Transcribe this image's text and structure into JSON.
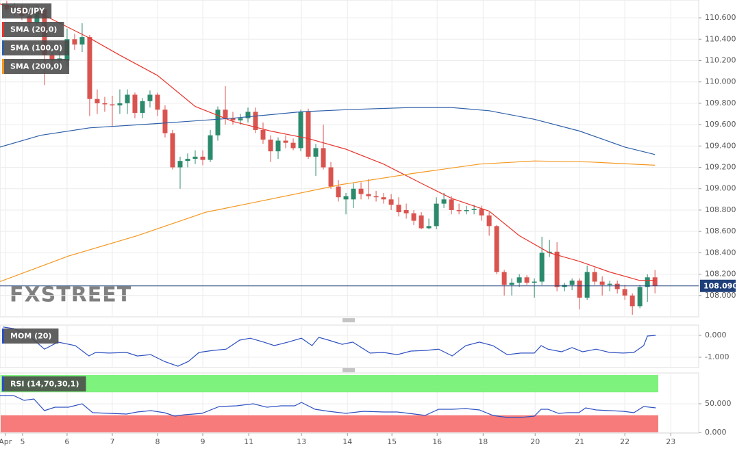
{
  "chart_data": [
    {
      "type": "candlestick",
      "title": "USD/JPY",
      "watermark": "FXSTREET",
      "up_color": "#2b8a6c",
      "down_color": "#d9534f",
      "xlim": [
        -0.9,
        91.8
      ],
      "ylim": [
        107.8,
        110.767
      ],
      "yticks": [
        {
          "value": 110.6,
          "label": "110.600"
        },
        {
          "value": 110.4,
          "label": "110.400"
        },
        {
          "value": 110.2,
          "label": "110.200"
        },
        {
          "value": 110.0,
          "label": "110.000"
        },
        {
          "value": 109.8,
          "label": "109.800"
        },
        {
          "value": 109.6,
          "label": "109.600"
        },
        {
          "value": 109.4,
          "label": "109.400"
        },
        {
          "value": 109.2,
          "label": "109.200"
        },
        {
          "value": 109.0,
          "label": "109.000"
        },
        {
          "value": 108.8,
          "label": "108.800"
        },
        {
          "value": 108.6,
          "label": "108.600"
        },
        {
          "value": 108.4,
          "label": "108.400"
        },
        {
          "value": 108.2,
          "label": "108.200"
        },
        {
          "value": 108.0,
          "label": "108.000"
        }
      ],
      "last_price": {
        "value": 108.09,
        "label": "108.090",
        "color": "#1f3f7a"
      },
      "candles": [
        [
          110.72,
          110.76,
          110.66,
          110.68
        ],
        [
          110.68,
          110.74,
          110.62,
          110.7
        ],
        [
          110.7,
          110.72,
          110.58,
          110.62
        ],
        [
          110.62,
          110.66,
          110.5,
          110.55
        ],
        [
          110.55,
          110.72,
          110.5,
          110.68
        ],
        [
          110.68,
          110.7,
          109.97,
          110.25
        ],
        [
          110.25,
          110.33,
          110.15,
          110.2
        ],
        [
          110.2,
          110.3,
          110.1,
          110.22
        ],
        [
          110.2,
          110.5,
          110.14,
          110.4
        ],
        [
          110.4,
          110.45,
          110.3,
          110.35
        ],
        [
          110.35,
          110.55,
          110.28,
          110.42
        ],
        [
          110.42,
          110.44,
          109.68,
          109.84
        ],
        [
          109.84,
          109.93,
          109.7,
          109.8
        ],
        [
          109.8,
          109.86,
          109.72,
          109.79
        ],
        [
          109.79,
          109.87,
          109.58,
          109.78
        ],
        [
          109.78,
          109.93,
          109.7,
          109.8
        ],
        [
          109.8,
          109.93,
          109.7,
          109.88
        ],
        [
          109.88,
          109.9,
          109.66,
          109.71
        ],
        [
          109.71,
          109.85,
          109.66,
          109.82
        ],
        [
          109.82,
          109.92,
          109.76,
          109.88
        ],
        [
          109.88,
          109.9,
          109.68,
          109.74
        ],
        [
          109.74,
          109.78,
          109.48,
          109.52
        ],
        [
          109.52,
          109.55,
          109.18,
          109.2
        ],
        [
          109.2,
          109.3,
          109.0,
          109.26
        ],
        [
          109.26,
          109.33,
          109.2,
          109.28
        ],
        [
          109.28,
          109.36,
          109.23,
          109.3
        ],
        [
          109.3,
          109.36,
          109.22,
          109.27
        ],
        [
          109.27,
          109.55,
          109.25,
          109.5
        ],
        [
          109.5,
          109.77,
          109.45,
          109.74
        ],
        [
          109.74,
          109.96,
          109.6,
          109.66
        ],
        [
          109.66,
          109.72,
          109.6,
          109.64
        ],
        [
          109.64,
          109.7,
          109.6,
          109.66
        ],
        [
          109.66,
          109.76,
          109.62,
          109.72
        ],
        [
          109.72,
          109.76,
          109.52,
          109.55
        ],
        [
          109.55,
          109.62,
          109.42,
          109.46
        ],
        [
          109.46,
          109.5,
          109.25,
          109.35
        ],
        [
          109.35,
          109.48,
          109.28,
          109.45
        ],
        [
          109.45,
          109.5,
          109.38,
          109.43
        ],
        [
          109.43,
          109.47,
          109.36,
          109.38
        ],
        [
          109.38,
          109.74,
          109.35,
          109.72
        ],
        [
          109.72,
          109.75,
          109.28,
          109.3
        ],
        [
          109.3,
          109.42,
          109.12,
          109.38
        ],
        [
          109.38,
          109.6,
          109.18,
          109.2
        ],
        [
          109.2,
          109.25,
          109.0,
          109.02
        ],
        [
          109.02,
          109.08,
          108.88,
          108.92
        ],
        [
          108.9,
          108.96,
          108.76,
          108.93
        ],
        [
          108.9,
          109.05,
          108.82,
          109.0
        ],
        [
          109.0,
          109.06,
          108.9,
          108.95
        ],
        [
          108.95,
          109.09,
          108.9,
          108.93
        ],
        [
          108.93,
          108.98,
          108.88,
          108.92
        ],
        [
          108.92,
          108.96,
          108.86,
          108.9
        ],
        [
          108.9,
          108.95,
          108.8,
          108.85
        ],
        [
          108.85,
          108.92,
          108.74,
          108.78
        ],
        [
          108.8,
          108.86,
          108.72,
          108.77
        ],
        [
          108.77,
          108.8,
          108.66,
          108.7
        ],
        [
          108.75,
          108.78,
          108.62,
          108.63
        ],
        [
          108.63,
          108.72,
          108.62,
          108.65
        ],
        [
          108.65,
          108.92,
          108.62,
          108.86
        ],
        [
          108.86,
          108.96,
          108.82,
          108.9
        ],
        [
          108.9,
          108.93,
          108.76,
          108.8
        ],
        [
          108.8,
          108.86,
          108.76,
          108.79
        ],
        [
          108.79,
          108.84,
          108.76,
          108.8
        ],
        [
          108.8,
          108.85,
          108.76,
          108.81
        ],
        [
          108.81,
          108.84,
          108.7,
          108.75
        ],
        [
          108.75,
          108.78,
          108.56,
          108.65
        ],
        [
          108.65,
          108.66,
          108.2,
          108.22
        ],
        [
          108.22,
          108.24,
          108.0,
          108.1
        ],
        [
          108.1,
          108.16,
          108.0,
          108.12
        ],
        [
          108.12,
          108.2,
          108.08,
          108.17
        ],
        [
          108.17,
          108.19,
          108.1,
          108.12
        ],
        [
          108.12,
          108.16,
          107.98,
          108.13
        ],
        [
          108.13,
          108.55,
          108.1,
          108.4
        ],
        [
          108.4,
          108.52,
          108.36,
          108.41
        ],
        [
          108.41,
          108.5,
          108.04,
          108.08
        ],
        [
          108.08,
          108.12,
          108.04,
          108.1
        ],
        [
          108.1,
          108.16,
          108.05,
          108.14
        ],
        [
          108.14,
          108.16,
          107.87,
          107.98
        ],
        [
          107.98,
          108.28,
          107.96,
          108.22
        ],
        [
          108.22,
          108.26,
          108.1,
          108.13
        ],
        [
          108.13,
          108.18,
          108.0,
          108.1
        ],
        [
          108.1,
          108.14,
          108.04,
          108.11
        ],
        [
          108.11,
          108.14,
          108.02,
          108.06
        ],
        [
          108.06,
          108.1,
          107.96,
          108.0
        ],
        [
          108.0,
          108.02,
          107.82,
          107.9
        ],
        [
          107.9,
          108.1,
          107.88,
          108.08
        ],
        [
          108.08,
          108.2,
          107.94,
          108.17
        ],
        [
          108.17,
          108.24,
          108.02,
          108.09
        ]
      ],
      "series": [
        {
          "name": "SMA (20,0)",
          "color": "#e8342c",
          "x": [
            -0.9,
            4.5,
            11,
            15,
            20,
            25,
            30,
            35,
            40,
            45,
            50,
            55,
            59,
            64,
            68,
            72,
            76,
            80,
            84,
            86
          ],
          "values": [
            110.73,
            110.64,
            110.41,
            110.25,
            110.06,
            109.77,
            109.63,
            109.54,
            109.47,
            109.37,
            109.23,
            109.05,
            108.91,
            108.79,
            108.56,
            108.4,
            108.32,
            108.22,
            108.14,
            108.14
          ]
        },
        {
          "name": "SMA (100,0)",
          "color": "#2d5fa8",
          "x": [
            -0.9,
            4.5,
            11,
            20,
            30,
            39,
            45,
            53.6,
            59,
            64,
            70,
            76,
            82,
            86
          ],
          "values": [
            109.39,
            109.5,
            109.57,
            109.61,
            109.66,
            109.72,
            109.74,
            109.76,
            109.76,
            109.73,
            109.65,
            109.54,
            109.39,
            109.32
          ]
        },
        {
          "name": "SMA (200,0)",
          "color": "#f5961e",
          "x": [
            -0.9,
            8.2,
            17.3,
            26.4,
            35.5,
            44.5,
            53.6,
            62.7,
            70,
            77.3,
            86
          ],
          "values": [
            108.13,
            108.37,
            108.56,
            108.78,
            108.91,
            109.04,
            109.14,
            109.23,
            109.26,
            109.25,
            109.22
          ]
        }
      ]
    },
    {
      "type": "line",
      "xlim": [
        -0.9,
        91.8
      ],
      "ylim": [
        -1.469,
        0.469
      ],
      "yticks": [
        {
          "value": 0,
          "label": "0.000"
        },
        {
          "value": -1,
          "label": "-1.000"
        }
      ],
      "series": [
        {
          "name": "MOM (20)",
          "color": "#2c4fc0",
          "x": [
            -0.5,
            0.9,
            2.7,
            5,
            6.8,
            9.1,
            10.9,
            11.8,
            13.6,
            15.9,
            17.3,
            19.1,
            20.9,
            22.7,
            24.1,
            25.5,
            27.3,
            29.1,
            30.9,
            32.3,
            34.1,
            35.5,
            37.3,
            39.1,
            40.5,
            41.4,
            42.7,
            44.5,
            45.9,
            48.2,
            50,
            51.8,
            53.6,
            55.5,
            57.3,
            59.1,
            60.9,
            62.7,
            64.5,
            66.4,
            68.2,
            70,
            70.9,
            71.8,
            73.6,
            75,
            76.4,
            78.2,
            80,
            81.8,
            83.2,
            84.5,
            85,
            86.1
          ],
          "values": [
            0.38,
            0.31,
            0.06,
            -0.63,
            -0.31,
            -0.47,
            -0.94,
            -0.78,
            -0.81,
            -0.78,
            -0.94,
            -0.88,
            -1.19,
            -1.41,
            -1.19,
            -0.78,
            -0.69,
            -0.63,
            -0.22,
            -0.13,
            -0.31,
            -0.47,
            -0.31,
            -0.13,
            -0.47,
            -0.09,
            -0.22,
            -0.41,
            -0.31,
            -0.81,
            -0.78,
            -0.88,
            -0.72,
            -0.69,
            -0.63,
            -0.94,
            -0.47,
            -0.31,
            -0.47,
            -0.88,
            -0.81,
            -0.81,
            -0.47,
            -0.63,
            -0.75,
            -0.56,
            -0.75,
            -0.63,
            -0.78,
            -0.81,
            -0.78,
            -0.47,
            -0.03,
            0.0
          ]
        }
      ]
    },
    {
      "type": "line",
      "xlim": [
        -0.9,
        91.8
      ],
      "ylim": [
        -1.2,
        103.6
      ],
      "yticks": [
        {
          "value": 50,
          "label": "50.000"
        },
        {
          "value": 0,
          "label": "0.000"
        }
      ],
      "bands": [
        {
          "from": 70,
          "to": 100,
          "color": "#7df27d"
        },
        {
          "from": 0,
          "to": 30,
          "color": "#f77b7b"
        }
      ],
      "xticks": [
        {
          "value": -0.2,
          "label": "Apr"
        },
        {
          "value": 2.1,
          "label": "5"
        },
        {
          "value": 8,
          "label": "6"
        },
        {
          "value": 14,
          "label": "7"
        },
        {
          "value": 20,
          "label": "8"
        },
        {
          "value": 26,
          "label": "9"
        },
        {
          "value": 32.1,
          "label": "11"
        },
        {
          "value": 39.1,
          "label": "13"
        },
        {
          "value": 45.2,
          "label": "14"
        },
        {
          "value": 51.1,
          "label": "15"
        },
        {
          "value": 57.1,
          "label": "16"
        },
        {
          "value": 63.2,
          "label": "18"
        },
        {
          "value": 70.1,
          "label": "20"
        },
        {
          "value": 76,
          "label": "21"
        },
        {
          "value": 82,
          "label": "22"
        },
        {
          "value": 88.1,
          "label": "23"
        }
      ],
      "series": [
        {
          "name": "RSI (14,70,30,1)",
          "color": "#2c4fc0",
          "x": [
            -0.9,
            0.9,
            2.3,
            3.6,
            5,
            6.4,
            8.2,
            10,
            11.4,
            13.6,
            15.9,
            17.3,
            19.1,
            20.9,
            22.3,
            23.6,
            25.9,
            28.2,
            30.5,
            32.7,
            34.5,
            36.4,
            38.2,
            39.1,
            40.9,
            42.7,
            45,
            47.3,
            50,
            51.8,
            54.1,
            55.5,
            57.3,
            59.1,
            60.9,
            62.7,
            64.5,
            66.4,
            68.2,
            70,
            70.9,
            71.8,
            73.2,
            74.5,
            75.9,
            76.8,
            78.2,
            80,
            81.8,
            83.2,
            84.5,
            86.1
          ],
          "values": [
            64.3,
            64.3,
            56.0,
            58.3,
            38.1,
            44.0,
            44.0,
            50.0,
            34.5,
            33.3,
            32.1,
            35.7,
            38.1,
            34.5,
            28.6,
            31.0,
            33.3,
            45.2,
            46.4,
            50.0,
            44.0,
            46.4,
            46.4,
            52.4,
            40.5,
            36.9,
            33.3,
            36.9,
            35.7,
            35.7,
            32.1,
            29.8,
            40.5,
            40.5,
            41.7,
            39.3,
            29.8,
            26.2,
            26.2,
            28.6,
            40.5,
            40.5,
            33.3,
            34.5,
            34.5,
            42.9,
            39.3,
            38.1,
            36.9,
            34.5,
            45.2,
            42.9
          ]
        }
      ]
    }
  ]
}
